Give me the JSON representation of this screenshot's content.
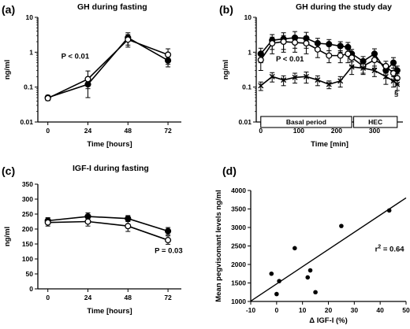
{
  "chart_data": [
    {
      "panel_label": "(a)",
      "type": "line",
      "title": "GH during fasting",
      "xlabel": "Time [hours]",
      "ylabel": "ng/ml",
      "yscale": "log",
      "xlim": [
        -6,
        80
      ],
      "ylim": [
        0.01,
        10
      ],
      "xticks": [
        "0",
        "24",
        "48",
        "72"
      ],
      "yticks": [
        "0.01",
        "0.1",
        "1",
        "10"
      ],
      "series": [
        {
          "marker": "filled",
          "x": [
            0,
            24,
            48,
            72
          ],
          "y": [
            0.05,
            0.12,
            2.6,
            0.58
          ],
          "err": [
            0.008,
            0.03,
            1.0,
            0.2
          ]
        },
        {
          "marker": "open",
          "x": [
            0,
            24,
            48,
            72
          ],
          "y": [
            0.048,
            0.17,
            2.3,
            0.85
          ],
          "err": [
            0.007,
            0.12,
            0.9,
            0.4
          ]
        }
      ],
      "annotations": [
        {
          "text": "P < 0.01",
          "x": 8,
          "y": 0.65
        }
      ]
    },
    {
      "panel_label": "(b)",
      "type": "line",
      "title": "GH during the study day",
      "xlabel": "Time [min]",
      "ylabel": "ng/ml",
      "yscale": "log",
      "xlim": [
        -12,
        375
      ],
      "ylim": [
        0.01,
        10
      ],
      "xticks": [
        "0",
        "100",
        "200",
        "300"
      ],
      "yticks": [
        "0.01",
        "0.1",
        "1",
        "10"
      ],
      "series": [
        {
          "marker": "filled",
          "x": [
            0,
            30,
            60,
            90,
            120,
            150,
            180,
            210,
            230,
            240,
            270,
            300,
            330,
            350,
            360
          ],
          "y": [
            0.9,
            2.2,
            2.4,
            2.6,
            2.5,
            1.8,
            1.7,
            1.5,
            1.4,
            0.9,
            0.55,
            0.9,
            0.3,
            0.5,
            0.3
          ],
          "err": [
            0.4,
            1.0,
            1.2,
            1.3,
            1.2,
            0.7,
            0.6,
            0.5,
            0.5,
            0.3,
            0.2,
            0.35,
            0.12,
            0.2,
            0.1
          ]
        },
        {
          "marker": "open",
          "x": [
            0,
            30,
            60,
            90,
            120,
            150,
            180,
            210,
            230,
            240,
            270,
            300,
            330,
            350,
            360
          ],
          "y": [
            0.6,
            1.8,
            2.0,
            1.9,
            1.8,
            1.2,
            0.8,
            0.8,
            0.9,
            0.7,
            0.4,
            0.6,
            0.4,
            0.25,
            0.18
          ],
          "err": [
            0.3,
            0.9,
            1.0,
            0.9,
            0.9,
            0.5,
            0.3,
            0.3,
            0.4,
            0.3,
            0.15,
            0.25,
            0.15,
            0.1,
            0.06
          ]
        },
        {
          "marker": "cross",
          "x": [
            0,
            30,
            60,
            90,
            120,
            150,
            180,
            210,
            240,
            270,
            300,
            330,
            350,
            360
          ],
          "y": [
            0.11,
            0.2,
            0.16,
            0.19,
            0.2,
            0.16,
            0.12,
            0.15,
            0.38,
            0.35,
            0.3,
            0.2,
            0.15,
            0.12
          ],
          "err": [
            0.03,
            0.06,
            0.05,
            0.06,
            0.07,
            0.05,
            0.03,
            0.05,
            0.15,
            0.12,
            0.1,
            0.08,
            0.05,
            0.04
          ]
        }
      ],
      "annotations": [
        {
          "text": "P < 0.01",
          "x": 40,
          "y": 0.55
        },
        {
          "text": "§",
          "x": 352,
          "y": 0.055
        }
      ],
      "periods": [
        {
          "label": "Basal period",
          "start": 0,
          "end": 240
        },
        {
          "label": "HEC",
          "start": 245,
          "end": 360
        }
      ]
    },
    {
      "panel_label": "(c)",
      "type": "line",
      "title": "IGF-I during fasting",
      "xlabel": "Time [hours]",
      "ylabel": "ng/ml",
      "xlim": [
        -6,
        80
      ],
      "ylim": [
        0,
        350
      ],
      "xticks": [
        "0",
        "24",
        "48",
        "72"
      ],
      "yticks": [
        "0",
        "50",
        "100",
        "150",
        "200",
        "250",
        "300",
        "350"
      ],
      "series": [
        {
          "marker": "filled",
          "x": [
            0,
            24,
            48,
            72
          ],
          "y": [
            228,
            242,
            235,
            193
          ],
          "err": [
            10,
            12,
            10,
            12
          ]
        },
        {
          "marker": "open",
          "x": [
            0,
            24,
            48,
            72
          ],
          "y": [
            222,
            225,
            210,
            163
          ],
          "err": [
            12,
            15,
            18,
            14
          ]
        }
      ],
      "annotations": [
        {
          "text": "P = 0.03",
          "x": 64,
          "y": 120
        }
      ]
    },
    {
      "panel_label": "(d)",
      "type": "scatter",
      "xlabel": "Δ IGF-I (%)",
      "ylabel": "Mean pegvisomant levels ng/ml",
      "xlim": [
        -10,
        50
      ],
      "ylim": [
        1000,
        4000
      ],
      "xticks": [
        "-10",
        "0",
        "10",
        "20",
        "30",
        "40",
        "50"
      ],
      "yticks": [
        "1000",
        "1500",
        "2000",
        "2500",
        "3000",
        "3500",
        "4000"
      ],
      "points": [
        {
          "x": -2,
          "y": 1750
        },
        {
          "x": 0,
          "y": 1200
        },
        {
          "x": 1,
          "y": 1550
        },
        {
          "x": 7,
          "y": 2440
        },
        {
          "x": 12,
          "y": 1650
        },
        {
          "x": 13,
          "y": 1840
        },
        {
          "x": 15,
          "y": 1250
        },
        {
          "x": 25,
          "y": 3040
        },
        {
          "x": 43.5,
          "y": 3460
        }
      ],
      "fit_line": {
        "x": [
          -10,
          50
        ],
        "y": [
          1010,
          3800
        ]
      },
      "annotations": [
        {
          "text": "r",
          "sup": "2",
          "rest": " = 0.64",
          "x": 38,
          "y": 2350
        }
      ]
    }
  ]
}
